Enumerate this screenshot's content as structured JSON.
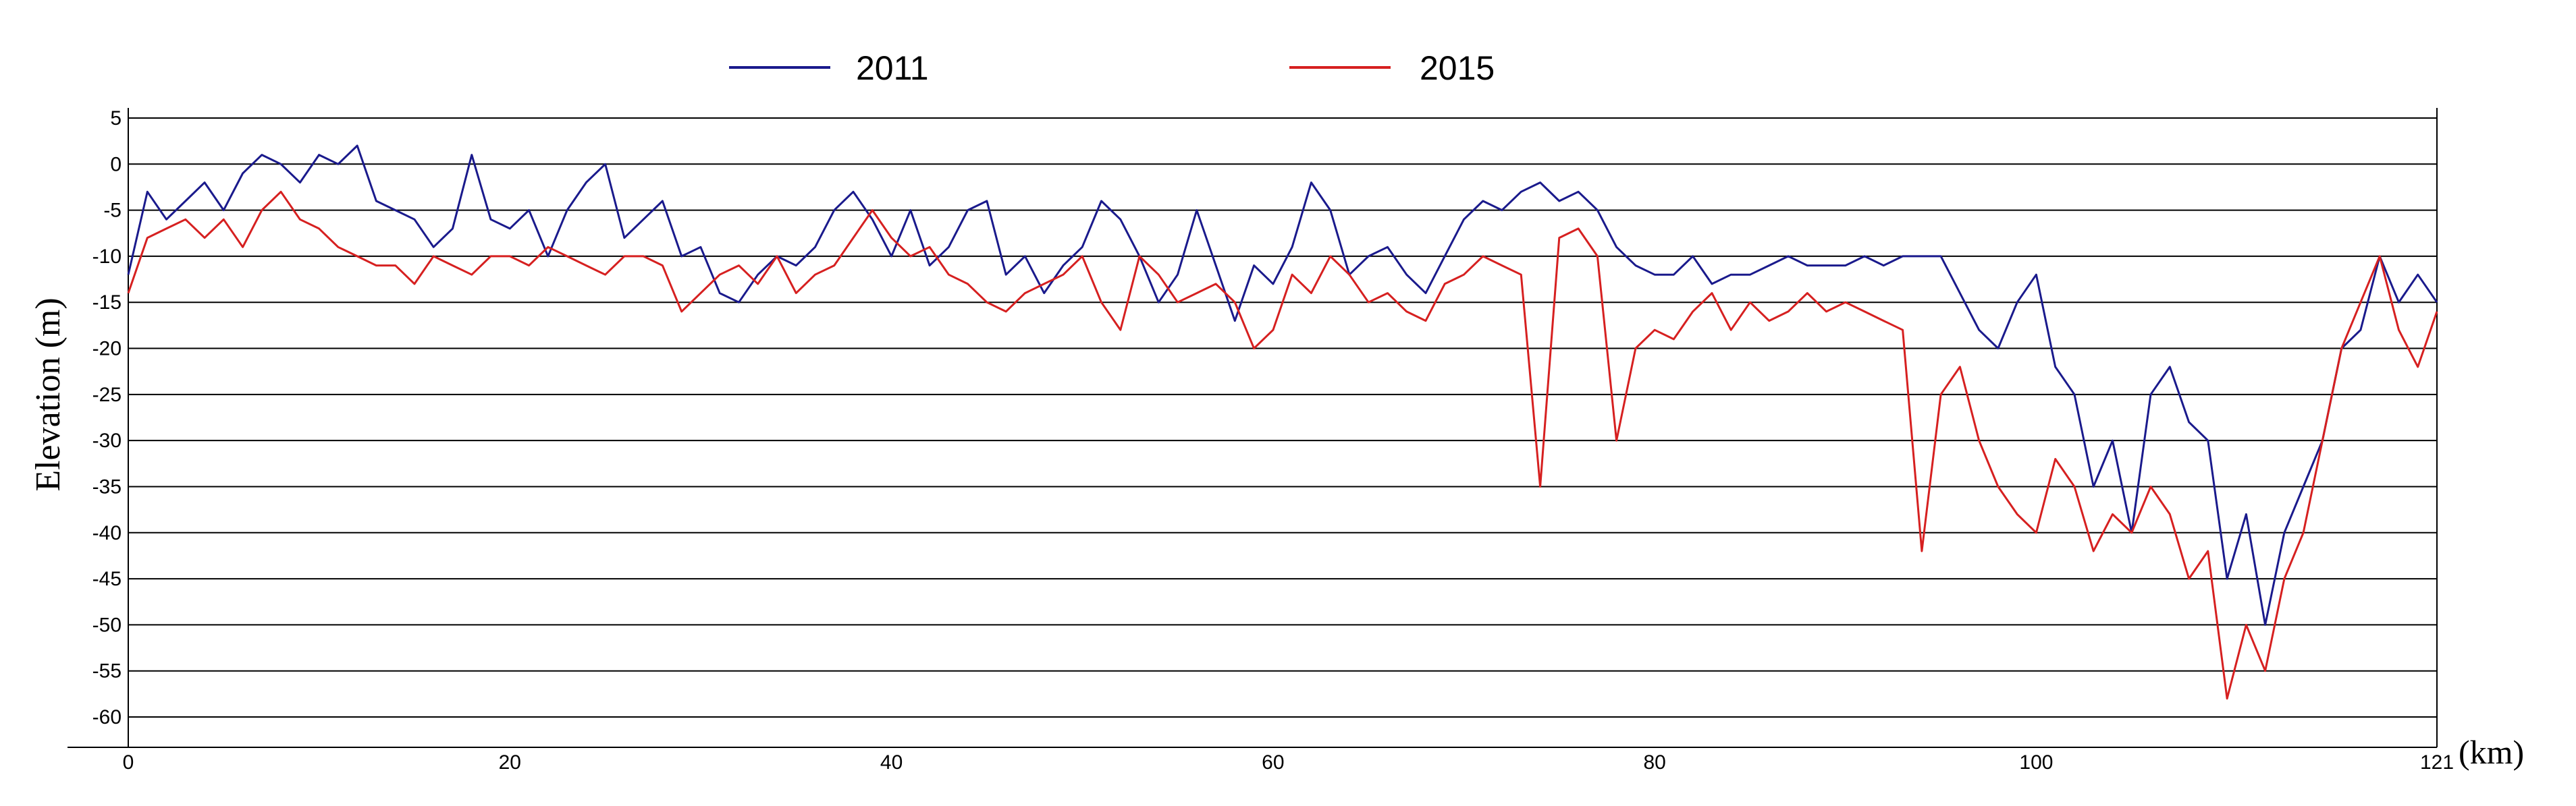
{
  "chart_data": {
    "type": "line",
    "title": "",
    "xlabel": "",
    "x_unit_label": "(km)",
    "ylabel": "Elevation (m)",
    "xlim": [
      0,
      121
    ],
    "ylim": [
      -62,
      5
    ],
    "y_ticks": [
      5,
      0,
      -5,
      -10,
      -15,
      -20,
      -25,
      -30,
      -35,
      -40,
      -45,
      -50,
      -55,
      -60
    ],
    "x_ticks": [
      0,
      20,
      40,
      60,
      80,
      100,
      121
    ],
    "grid": "horizontal",
    "legend_position": "top-center",
    "series": [
      {
        "name": "2011",
        "color": "#1a1a8c",
        "x": [
          0,
          1,
          2,
          3,
          4,
          5,
          6,
          7,
          8,
          9,
          10,
          11,
          12,
          13,
          14,
          15,
          16,
          17,
          18,
          19,
          20,
          21,
          22,
          23,
          24,
          25,
          26,
          27,
          28,
          29,
          30,
          31,
          32,
          33,
          34,
          35,
          36,
          37,
          38,
          39,
          40,
          41,
          42,
          43,
          44,
          45,
          46,
          47,
          48,
          49,
          50,
          51,
          52,
          53,
          54,
          55,
          56,
          57,
          58,
          59,
          60,
          61,
          62,
          63,
          64,
          65,
          66,
          67,
          68,
          69,
          70,
          71,
          72,
          73,
          74,
          75,
          76,
          77,
          78,
          79,
          80,
          81,
          82,
          83,
          84,
          85,
          86,
          87,
          88,
          89,
          90,
          91,
          92,
          93,
          94,
          95,
          96,
          97,
          98,
          99,
          100,
          101,
          102,
          103,
          104,
          105,
          106,
          107,
          108,
          109,
          110,
          111,
          112,
          113,
          114,
          115,
          116,
          117,
          118,
          119,
          120,
          121
        ],
        "values": [
          -12,
          -3,
          -6,
          -4,
          -2,
          -5,
          -1,
          1,
          0,
          -2,
          1,
          0,
          2,
          -4,
          -5,
          -6,
          -9,
          -7,
          1,
          -6,
          -7,
          -5,
          -10,
          -5,
          -2,
          0,
          -8,
          -6,
          -4,
          -10,
          -9,
          -14,
          -15,
          -12,
          -10,
          -11,
          -9,
          -5,
          -3,
          -6,
          -10,
          -5,
          -11,
          -9,
          -5,
          -4,
          -12,
          -10,
          -14,
          -11,
          -9,
          -4,
          -6,
          -10,
          -15,
          -12,
          -5,
          -11,
          -17,
          -11,
          -13,
          -9,
          -2,
          -5,
          -12,
          -10,
          -9,
          -12,
          -14,
          -10,
          -6,
          -4,
          -5,
          -3,
          -2,
          -4,
          -3,
          -5,
          -9,
          -11,
          -12,
          -12,
          -10,
          -13,
          -12,
          -12,
          -11,
          -10,
          -11,
          -11,
          -11,
          -10,
          -11,
          -10,
          -10,
          -10,
          -14,
          -18,
          -20,
          -15,
          -12,
          -22,
          -25,
          -35,
          -30,
          -40,
          -25,
          -22,
          -28,
          -30,
          -45,
          -38,
          -50,
          -40,
          -35,
          -30,
          -20,
          -18,
          -10,
          -15,
          -12,
          -15
        ]
      },
      {
        "name": "2015",
        "color": "#d62020",
        "x": [
          0,
          1,
          2,
          3,
          4,
          5,
          6,
          7,
          8,
          9,
          10,
          11,
          12,
          13,
          14,
          15,
          16,
          17,
          18,
          19,
          20,
          21,
          22,
          23,
          24,
          25,
          26,
          27,
          28,
          29,
          30,
          31,
          32,
          33,
          34,
          35,
          36,
          37,
          38,
          39,
          40,
          41,
          42,
          43,
          44,
          45,
          46,
          47,
          48,
          49,
          50,
          51,
          52,
          53,
          54,
          55,
          56,
          57,
          58,
          59,
          60,
          61,
          62,
          63,
          64,
          65,
          66,
          67,
          68,
          69,
          70,
          71,
          72,
          73,
          74,
          75,
          76,
          77,
          78,
          79,
          80,
          81,
          82,
          83,
          84,
          85,
          86,
          87,
          88,
          89,
          90,
          91,
          92,
          93,
          94,
          95,
          96,
          97,
          98,
          99,
          100,
          101,
          102,
          103,
          104,
          105,
          106,
          107,
          108,
          109,
          110,
          111,
          112,
          113,
          114,
          115,
          116,
          117,
          118,
          119,
          120,
          121
        ],
        "values": [
          -14,
          -8,
          -7,
          -6,
          -8,
          -6,
          -9,
          -5,
          -3,
          -6,
          -7,
          -9,
          -10,
          -11,
          -11,
          -13,
          -10,
          -11,
          -12,
          -10,
          -10,
          -11,
          -9,
          -10,
          -11,
          -12,
          -10,
          -10,
          -11,
          -16,
          -14,
          -12,
          -11,
          -13,
          -10,
          -14,
          -12,
          -11,
          -8,
          -5,
          -8,
          -10,
          -9,
          -12,
          -13,
          -15,
          -16,
          -14,
          -13,
          -12,
          -10,
          -15,
          -18,
          -10,
          -12,
          -15,
          -14,
          -13,
          -15,
          -20,
          -18,
          -12,
          -14,
          -10,
          -12,
          -15,
          -14,
          -16,
          -17,
          -13,
          -12,
          -10,
          -11,
          -12,
          -35,
          -8,
          -7,
          -10,
          -30,
          -20,
          -18,
          -19,
          -16,
          -14,
          -18,
          -15,
          -17,
          -16,
          -14,
          -16,
          -15,
          -16,
          -17,
          -18,
          -42,
          -25,
          -22,
          -30,
          -35,
          -38,
          -40,
          -32,
          -35,
          -42,
          -38,
          -40,
          -35,
          -38,
          -45,
          -42,
          -58,
          -50,
          -55,
          -45,
          -40,
          -30,
          -20,
          -15,
          -10,
          -18,
          -22,
          -16
        ]
      }
    ]
  }
}
